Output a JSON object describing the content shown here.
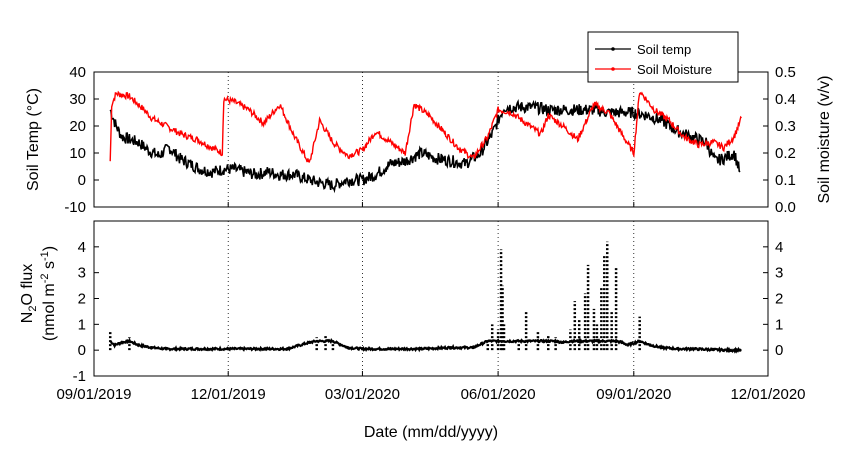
{
  "chart_data": [
    {
      "type": "line",
      "panel": "top",
      "xlabel": "",
      "ylabel": "Soil Temp (°C)",
      "y2label": "Soil moisture (v/v)",
      "xlim": [
        "2019-09-01",
        "2020-12-01"
      ],
      "xticks": [
        "2019-09-01",
        "2019-12-01",
        "2020-03-01",
        "2020-06-01",
        "2020-09-01",
        "2020-12-01"
      ],
      "ylim": [
        -10,
        40
      ],
      "yticks": [
        -10,
        0,
        10,
        20,
        30,
        40
      ],
      "y2lim": [
        0.0,
        0.5
      ],
      "y2ticks": [
        "0.0",
        "0.1",
        "0.2",
        "0.3",
        "0.4",
        "0.5"
      ],
      "grid": "vertical dotted",
      "legend_position": "top-right",
      "series": [
        {
          "name": "Soil temp",
          "axis": "left",
          "color": "#000000",
          "x": [
            "2019-09-12",
            "2019-09-16",
            "2019-09-20",
            "2019-09-25",
            "2019-10-01",
            "2019-10-08",
            "2019-10-15",
            "2019-10-22",
            "2019-10-29",
            "2019-11-05",
            "2019-11-12",
            "2019-11-20",
            "2019-11-28",
            "2019-12-05",
            "2019-12-12",
            "2019-12-20",
            "2019-12-28",
            "2020-01-05",
            "2020-01-15",
            "2020-01-25",
            "2020-02-01",
            "2020-02-10",
            "2020-02-20",
            "2020-03-01",
            "2020-03-10",
            "2020-03-20",
            "2020-03-30",
            "2020-04-10",
            "2020-04-20",
            "2020-05-01",
            "2020-05-10",
            "2020-05-20",
            "2020-05-28",
            "2020-06-05",
            "2020-06-15",
            "2020-06-25",
            "2020-07-05",
            "2020-07-15",
            "2020-07-25",
            "2020-08-05",
            "2020-08-15",
            "2020-08-25",
            "2020-09-01",
            "2020-09-10",
            "2020-09-20",
            "2020-10-01",
            "2020-10-10",
            "2020-10-20",
            "2020-10-26",
            "2020-11-01",
            "2020-11-08",
            "2020-11-12"
          ],
          "y": [
            26,
            20,
            16,
            15,
            14,
            11,
            9,
            12,
            8,
            6,
            4,
            3,
            4,
            4,
            3,
            2,
            3,
            2,
            2,
            0,
            -1,
            -2,
            0,
            0,
            2,
            6,
            7,
            10,
            8,
            7,
            6,
            10,
            17,
            27,
            27,
            27,
            26,
            26,
            26,
            26,
            25,
            25,
            25,
            24,
            22,
            18,
            16,
            14,
            7,
            8,
            10,
            3
          ]
        },
        {
          "name": "Soil Moisture",
          "axis": "right",
          "color": "#ff0000",
          "x": [
            "2019-09-12",
            "2019-09-13",
            "2019-09-16",
            "2019-09-25",
            "2019-10-01",
            "2019-10-05",
            "2019-10-10",
            "2019-10-20",
            "2019-10-30",
            "2019-11-10",
            "2019-11-20",
            "2019-11-27",
            "2019-11-28",
            "2019-12-05",
            "2019-12-15",
            "2019-12-25",
            "2020-01-05",
            "2020-01-15",
            "2020-01-25",
            "2020-02-01",
            "2020-02-10",
            "2020-02-20",
            "2020-03-01",
            "2020-03-10",
            "2020-03-20",
            "2020-03-30",
            "2020-04-05",
            "2020-04-15",
            "2020-04-25",
            "2020-05-05",
            "2020-05-15",
            "2020-05-25",
            "2020-06-01",
            "2020-06-10",
            "2020-06-20",
            "2020-06-30",
            "2020-07-05",
            "2020-07-15",
            "2020-07-25",
            "2020-08-05",
            "2020-08-15",
            "2020-08-25",
            "2020-09-01",
            "2020-09-05",
            "2020-09-15",
            "2020-09-25",
            "2020-10-05",
            "2020-10-15",
            "2020-10-25",
            "2020-11-01",
            "2020-11-08",
            "2020-11-13"
          ],
          "y": [
            0.17,
            0.38,
            0.42,
            0.41,
            0.38,
            0.36,
            0.33,
            0.3,
            0.27,
            0.25,
            0.22,
            0.2,
            0.4,
            0.39,
            0.36,
            0.31,
            0.38,
            0.26,
            0.16,
            0.32,
            0.24,
            0.19,
            0.21,
            0.28,
            0.24,
            0.2,
            0.38,
            0.34,
            0.28,
            0.22,
            0.18,
            0.26,
            0.36,
            0.35,
            0.31,
            0.27,
            0.34,
            0.3,
            0.25,
            0.38,
            0.35,
            0.26,
            0.2,
            0.43,
            0.36,
            0.32,
            0.26,
            0.23,
            0.24,
            0.22,
            0.26,
            0.33
          ]
        }
      ]
    },
    {
      "type": "scatter",
      "panel": "bottom",
      "xlabel": "Date (mm/dd/yyyy)",
      "ylabel": "N2O flux (nmol m-2 s-1)",
      "xlim": [
        "2019-09-01",
        "2020-12-01"
      ],
      "xticks": [
        "09/01/2019",
        "12/01/2019",
        "03/01/2020",
        "06/01/2020",
        "09/01/2020",
        "12/01/2020"
      ],
      "ylim": [
        -1,
        5
      ],
      "yticks": [
        -1,
        0,
        1,
        2,
        3,
        4
      ],
      "grid": "vertical dotted",
      "series": [
        {
          "color": "#000000",
          "x": [
            "2019-09-12",
            "2019-09-15",
            "2019-09-20",
            "2019-09-25",
            "2019-10-01",
            "2019-10-10",
            "2019-10-20",
            "2019-11-01",
            "2019-11-15",
            "2019-12-01",
            "2019-12-20",
            "2020-01-10",
            "2020-01-25",
            "2020-01-30",
            "2020-02-05",
            "2020-02-10",
            "2020-02-20",
            "2020-03-01",
            "2020-03-20",
            "2020-04-10",
            "2020-04-30",
            "2020-05-15",
            "2020-05-25",
            "2020-05-28",
            "2020-06-01",
            "2020-06-03",
            "2020-06-04",
            "2020-06-05",
            "2020-06-15",
            "2020-06-20",
            "2020-06-28",
            "2020-07-05",
            "2020-07-10",
            "2020-07-15",
            "2020-07-20",
            "2020-07-23",
            "2020-07-26",
            "2020-07-30",
            "2020-08-01",
            "2020-08-05",
            "2020-08-07",
            "2020-08-10",
            "2020-08-12",
            "2020-08-14",
            "2020-08-17",
            "2020-08-20",
            "2020-08-24",
            "2020-08-28",
            "2020-09-05",
            "2020-09-12",
            "2020-09-20",
            "2020-10-01",
            "2020-10-10",
            "2020-10-25",
            "2020-11-05",
            "2020-11-12"
          ],
          "y": [
            0.7,
            0.2,
            0.3,
            0.5,
            0.2,
            0.1,
            0.05,
            0.05,
            0.05,
            0.05,
            0.05,
            0.05,
            0.3,
            0.5,
            0.6,
            0.4,
            0.1,
            0.05,
            0.05,
            0.05,
            0.1,
            0.1,
            0.4,
            1.0,
            0.8,
            3.9,
            2.5,
            1.0,
            0.4,
            1.5,
            0.7,
            0.6,
            0.5,
            0.3,
            0.8,
            1.9,
            1.2,
            2.2,
            3.3,
            1.6,
            1.0,
            2.4,
            3.7,
            4.2,
            1.5,
            3.2,
            0.3,
            0.2,
            1.3,
            0.2,
            0.1,
            0.05,
            0.05,
            0.02,
            0.0,
            0.0
          ]
        }
      ]
    }
  ]
}
